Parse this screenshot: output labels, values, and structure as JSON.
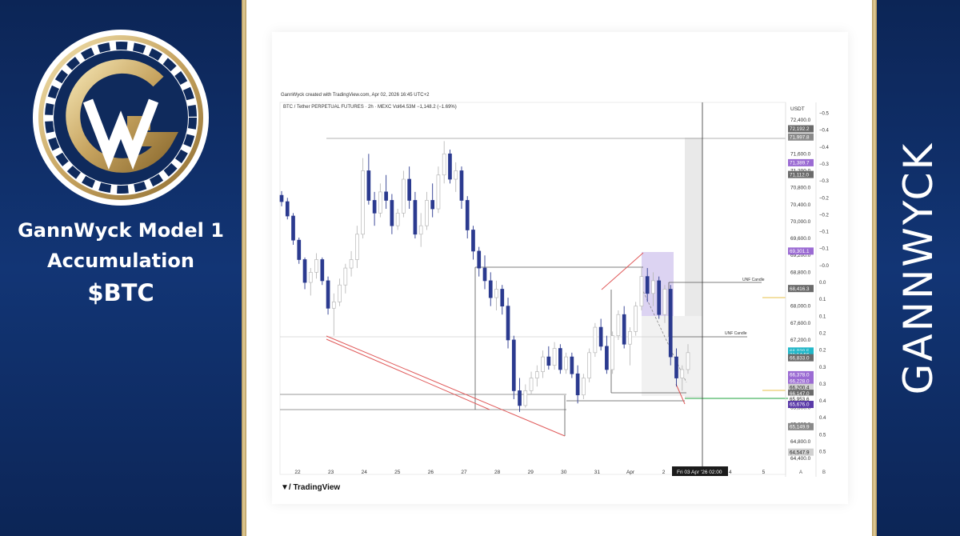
{
  "left": {
    "caption_line1": "GannWyck Model 1",
    "caption_line2": "Accumulation",
    "caption_line3": "$BTC",
    "logo_icon": "gannwyck-g-w-logo"
  },
  "right": {
    "brand": "GANNWYCK"
  },
  "chart": {
    "meta": "GannWyck created with TradingView.com, Apr 02, 2026 16:45 UTC+2",
    "title": "BTC / Tether PERPETUAL FUTURES · 2h · MEXC   Vol64.53M  −1,148.2 (−1.69%)",
    "currency": "USDT",
    "crosshair_date": "Fri 03 Apr '26   02:00",
    "footer_logo": "TradingView",
    "annotation_1": "UNF Candle",
    "annotation_2": "UNF Candle",
    "bottom_letters": [
      "A",
      "B"
    ]
  },
  "chart_data": {
    "type": "candlestick",
    "title": "",
    "x_labels": [
      "22",
      "23",
      "24",
      "25",
      "26",
      "27",
      "28",
      "29",
      "30",
      "31",
      "Apr",
      "2",
      "3",
      "4",
      "5"
    ],
    "y_ticks": [
      "72,400.0",
      "72,000.0",
      "71,600.0",
      "71,200.0",
      "70,800.0",
      "70,400.0",
      "70,000.0",
      "69,600.0",
      "69,200.0",
      "68,800.0",
      "68,400.0",
      "68,000.0",
      "67,600.0",
      "67,200.0",
      "66,800.0",
      "66,400.0",
      "66,000.0",
      "65,600.0",
      "65,200.0",
      "64,800.0",
      "64,400.0"
    ],
    "y_tick_values": [
      72400,
      72000,
      71600,
      71200,
      70800,
      70400,
      70000,
      69600,
      69200,
      68800,
      68400,
      68000,
      67600,
      67200,
      66800,
      66400,
      66000,
      65600,
      65200,
      64800,
      64400
    ],
    "ylim": [
      64340,
      72640
    ],
    "secondary_axis": [
      {
        "label": "−0.5",
        "price": 72560
      },
      {
        "label": "−0.4",
        "price": 72160
      },
      {
        "label": "−0.4",
        "price": 71760
      },
      {
        "label": "−0.3",
        "price": 71360
      },
      {
        "label": "−0.3",
        "price": 70960
      },
      {
        "label": "−0.2",
        "price": 70560
      },
      {
        "label": "−0.2",
        "price": 70160
      },
      {
        "label": "−0.1",
        "price": 69760
      },
      {
        "label": "−0.1",
        "price": 69360
      },
      {
        "label": "−0.0",
        "price": 68960
      },
      {
        "label": "0.0",
        "price": 68560
      },
      {
        "label": "0.1",
        "price": 68160
      },
      {
        "label": "0.1",
        "price": 67760
      },
      {
        "label": "0.2",
        "price": 67360
      },
      {
        "label": "0.2",
        "price": 66960
      },
      {
        "label": "0.3",
        "price": 66560
      },
      {
        "label": "0.3",
        "price": 66160
      },
      {
        "label": "0.4",
        "price": 65760
      },
      {
        "label": "0.4",
        "price": 65360
      },
      {
        "label": "0.5",
        "price": 64960
      },
      {
        "label": "0.5",
        "price": 64560
      }
    ],
    "price_labels": [
      {
        "value": "72,192.2",
        "price": 72192,
        "color": "#6b6b6b"
      },
      {
        "value": "71,997.8",
        "price": 71998,
        "color": "#8a8a8a"
      },
      {
        "value": "71,389.7",
        "price": 71390,
        "color": "#9b6bd3"
      },
      {
        "value": "71,112.0",
        "price": 71112,
        "color": "#6b6b6b"
      },
      {
        "value": "69,301.1",
        "price": 69301,
        "color": "#9b6bd3"
      },
      {
        "value": "68,416.3",
        "price": 68416,
        "color": "#6b6b6b"
      },
      {
        "value": "66,938.5",
        "price": 66938,
        "color": "#22b7c8"
      },
      {
        "value": "21:14:56",
        "price": 66855,
        "color": "#22b7c8"
      },
      {
        "value": "66,833.0",
        "price": 66780,
        "color": "#6b6b6b"
      },
      {
        "value": "66,378.0",
        "price": 66378,
        "color": "#9b6bd3"
      },
      {
        "value": "66,228.0",
        "price": 66228,
        "color": "#9b6bd3"
      },
      {
        "value": "66,200.4",
        "price": 66080,
        "color": "#d0d0d0"
      },
      {
        "value": "66,147.0",
        "price": 65940,
        "color": "#6b6b6b"
      },
      {
        "value": "65,953.6",
        "price": 65800,
        "color": "#ffffff"
      },
      {
        "value": "65,676.0",
        "price": 65676,
        "color": "#5a3aa8"
      },
      {
        "value": "65,149.9",
        "price": 65150,
        "color": "#8a8a8a"
      },
      {
        "value": "64,547.9",
        "price": 64548,
        "color": "#d0d0d0"
      }
    ],
    "ohlc": [
      [
        70620,
        70720,
        70360,
        70470
      ],
      [
        70470,
        70560,
        70050,
        70130
      ],
      [
        70130,
        70200,
        69450,
        69560
      ],
      [
        69560,
        69620,
        69000,
        69100
      ],
      [
        69100,
        69150,
        68400,
        68560
      ],
      [
        68560,
        68900,
        68250,
        68800
      ],
      [
        68800,
        69250,
        68650,
        69100
      ],
      [
        69100,
        69150,
        68500,
        68600
      ],
      [
        68600,
        68700,
        67800,
        67950
      ],
      [
        67950,
        68300,
        67300,
        68100
      ],
      [
        68100,
        68650,
        68000,
        68500
      ],
      [
        68500,
        69000,
        68300,
        68900
      ],
      [
        68900,
        69300,
        68700,
        69100
      ],
      [
        69100,
        69900,
        68900,
        69700
      ],
      [
        69700,
        71500,
        69600,
        71200
      ],
      [
        71200,
        71600,
        70400,
        70500
      ],
      [
        70500,
        70700,
        69900,
        70200
      ],
      [
        70200,
        70900,
        70100,
        70700
      ],
      [
        70700,
        71100,
        70300,
        70500
      ],
      [
        70500,
        70650,
        69700,
        69900
      ],
      [
        69900,
        70300,
        69800,
        70200
      ],
      [
        70200,
        71200,
        70100,
        71000
      ],
      [
        71000,
        71300,
        70300,
        70500
      ],
      [
        70500,
        70700,
        69600,
        69700
      ],
      [
        69700,
        70200,
        69400,
        69900
      ],
      [
        69900,
        70700,
        69800,
        70500
      ],
      [
        70500,
        70900,
        70100,
        70300
      ],
      [
        70300,
        71300,
        70200,
        71100
      ],
      [
        71100,
        71900,
        70900,
        71600
      ],
      [
        71600,
        71700,
        70900,
        71000
      ],
      [
        71000,
        71400,
        70700,
        71200
      ],
      [
        71200,
        71300,
        70300,
        70500
      ],
      [
        70500,
        70600,
        69600,
        69800
      ],
      [
        69800,
        69900,
        69100,
        69300
      ],
      [
        69300,
        69400,
        68700,
        68900
      ],
      [
        68900,
        69200,
        68400,
        68600
      ],
      [
        68600,
        68800,
        68000,
        68200
      ],
      [
        68200,
        68600,
        67900,
        68400
      ],
      [
        68400,
        68500,
        67800,
        68000
      ],
      [
        68000,
        68200,
        67000,
        67200
      ],
      [
        67200,
        67300,
        65800,
        66000
      ],
      [
        66000,
        66300,
        65500,
        65650
      ],
      [
        65650,
        66150,
        65600,
        66000
      ],
      [
        66000,
        66450,
        65900,
        66300
      ],
      [
        66300,
        66600,
        66100,
        66450
      ],
      [
        66450,
        66950,
        66300,
        66800
      ],
      [
        66800,
        67050,
        66500,
        66600
      ],
      [
        66600,
        67150,
        66500,
        67000
      ],
      [
        67000,
        67100,
        66400,
        66500
      ],
      [
        66500,
        66900,
        66400,
        66800
      ],
      [
        66800,
        66900,
        66300,
        66400
      ],
      [
        66400,
        66600,
        65700,
        65900
      ],
      [
        65900,
        66400,
        65800,
        66300
      ],
      [
        66300,
        67000,
        66200,
        66900
      ],
      [
        66900,
        67600,
        66800,
        67500
      ],
      [
        67500,
        67700,
        66950,
        67050
      ],
      [
        67050,
        67300,
        66400,
        66500
      ],
      [
        66500,
        67400,
        66400,
        67300
      ],
      [
        67300,
        67900,
        67200,
        67800
      ],
      [
        67800,
        68000,
        67000,
        67100
      ],
      [
        67100,
        67500,
        66600,
        67400
      ],
      [
        67400,
        68100,
        67300,
        68000
      ],
      [
        68000,
        68900,
        67900,
        68700
      ],
      [
        68700,
        68900,
        68100,
        68300
      ],
      [
        68300,
        68800,
        68000,
        68600
      ],
      [
        68600,
        68700,
        67700,
        67800
      ],
      [
        67800,
        68500,
        67600,
        68400
      ],
      [
        68400,
        68500,
        66600,
        66800
      ],
      [
        66800,
        67000,
        66100,
        66300
      ],
      [
        66300,
        66600,
        66000,
        66500
      ],
      [
        66500,
        67100,
        66400,
        66900
      ]
    ]
  }
}
